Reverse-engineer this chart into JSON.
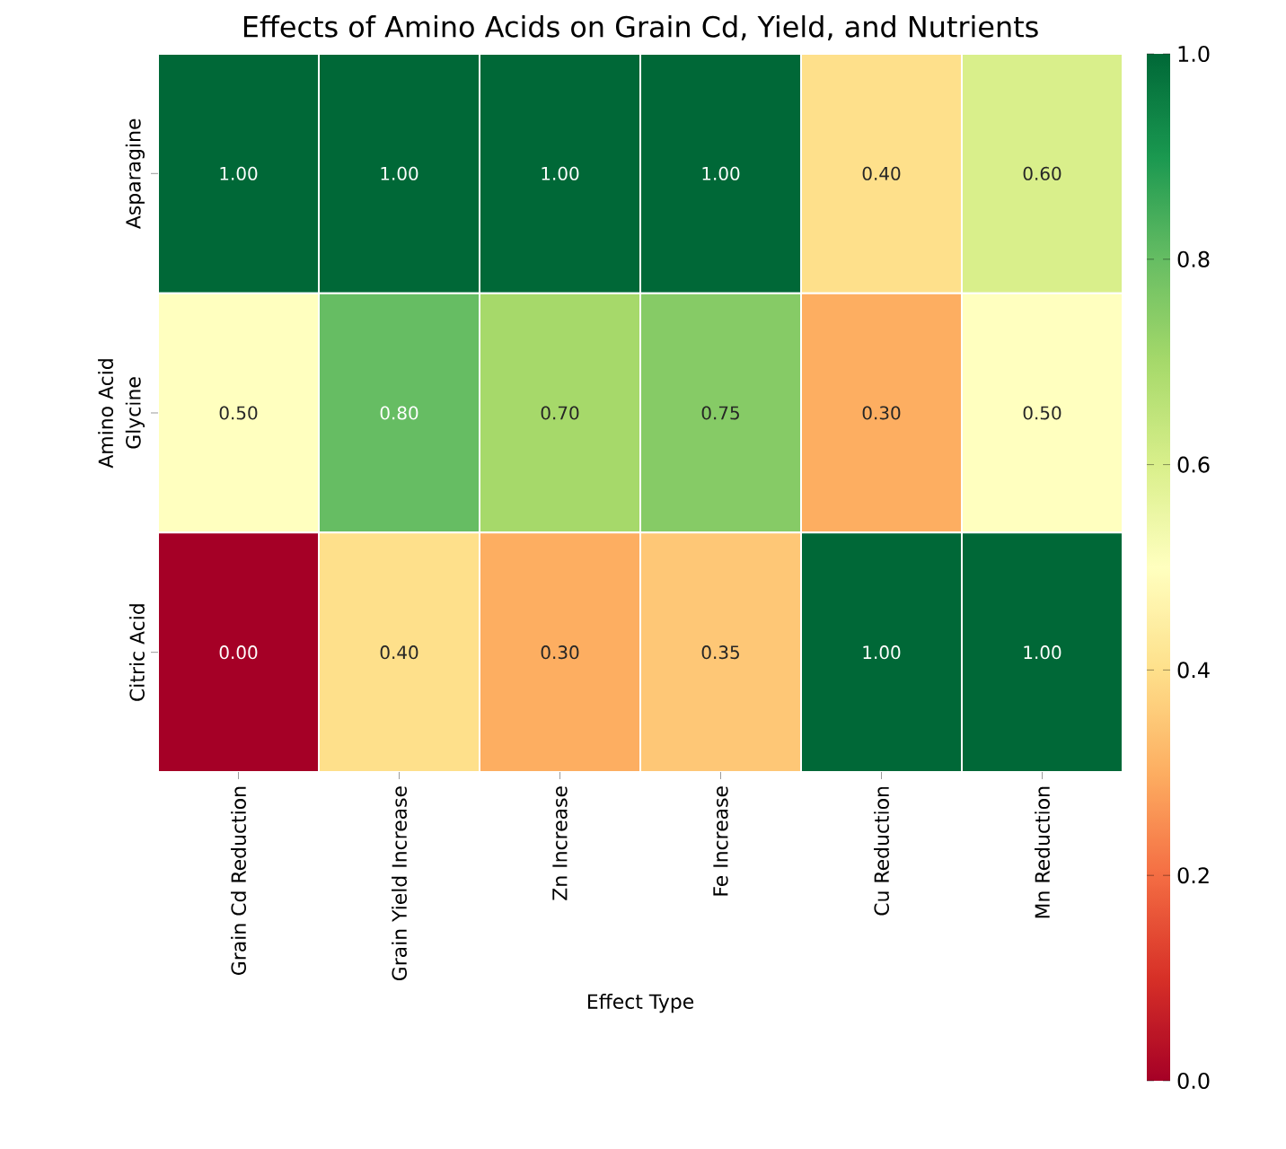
{
  "chart_data": {
    "type": "heatmap",
    "title": "Effects of Amino Acids on Grain Cd, Yield, and Nutrients",
    "xlabel": "Effect Type",
    "ylabel": "Amino Acid",
    "categories": [
      "Grain Cd Reduction",
      "Grain Yield Increase",
      "Zn Increase",
      "Fe Increase",
      "Cu Reduction",
      "Mn Reduction"
    ],
    "y_categories": [
      "Asparagine",
      "Glycine",
      "Citric Acid"
    ],
    "cells": [
      [
        1.0,
        1.0,
        1.0,
        1.0,
        0.4,
        0.6
      ],
      [
        0.5,
        0.8,
        0.7,
        0.75,
        0.3,
        0.5
      ],
      [
        0.0,
        0.4,
        0.3,
        0.35,
        1.0,
        1.0
      ]
    ],
    "cell_labels": [
      [
        "1.00",
        "1.00",
        "1.00",
        "1.00",
        "0.40",
        "0.60"
      ],
      [
        "0.50",
        "0.80",
        "0.70",
        "0.75",
        "0.30",
        "0.50"
      ],
      [
        "0.00",
        "0.40",
        "0.30",
        "0.35",
        "1.00",
        "1.00"
      ]
    ],
    "clim": [
      0,
      1
    ],
    "cticks": [
      {
        "value": 0,
        "label": "0.0"
      },
      {
        "value": 0.2,
        "label": "0.2"
      },
      {
        "value": 0.4,
        "label": "0.4"
      },
      {
        "value": 0.6,
        "label": "0.6"
      },
      {
        "value": 0.8,
        "label": "0.8"
      },
      {
        "value": 1,
        "label": "1.0"
      }
    ]
  }
}
